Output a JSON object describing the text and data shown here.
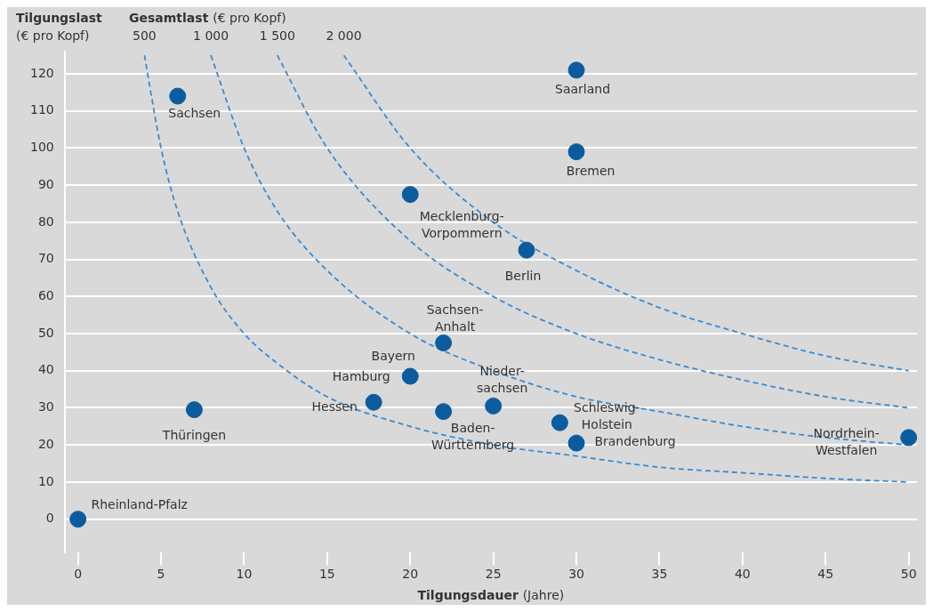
{
  "chart_data": {
    "type": "scatter",
    "ylabel": "Tilgungslast (€ pro Kopf)",
    "xlabel": "Tilgungsdauer (Jahre)",
    "legend_title": "Gesamtlast (€ pro Kopf)",
    "xlim": [
      -0.8,
      50.5
    ],
    "ylim": [
      -9,
      126
    ],
    "xticks": [
      0,
      5,
      10,
      15,
      20,
      25,
      30,
      35,
      40,
      45,
      50
    ],
    "yticks": [
      0,
      10,
      20,
      30,
      40,
      50,
      60,
      70,
      80,
      90,
      100,
      110,
      120
    ],
    "grid": "y",
    "legend": false,
    "series": [
      {
        "type": "line",
        "name": "500",
        "color": "#3a8ad0",
        "line_style": "dashed",
        "x": [
          4,
          5,
          6,
          8,
          10,
          12,
          15,
          20,
          25,
          30,
          35,
          40,
          45,
          50
        ],
        "values": [
          125,
          100,
          83,
          62.5,
          50,
          42,
          33,
          25,
          20,
          17,
          14,
          12.5,
          11,
          10
        ]
      },
      {
        "type": "line",
        "name": "1 000",
        "color": "#3a8ad0",
        "line_style": "dashed",
        "x": [
          8,
          10,
          12,
          15,
          20,
          25,
          30,
          35,
          40,
          45,
          50
        ],
        "values": [
          125,
          100,
          83,
          67,
          50,
          40,
          33,
          29,
          25,
          22,
          20
        ]
      },
      {
        "type": "line",
        "name": "1 500",
        "color": "#3a8ad0",
        "line_style": "dashed",
        "x": [
          12,
          15,
          20,
          25,
          30,
          35,
          40,
          45,
          50
        ],
        "values": [
          125,
          100,
          75,
          60,
          50,
          43,
          37.5,
          33,
          30
        ]
      },
      {
        "type": "line",
        "name": "2 000",
        "color": "#3a8ad0",
        "line_style": "dashed",
        "x": [
          16,
          20,
          25,
          30,
          35,
          40,
          45,
          50
        ],
        "values": [
          125,
          100,
          80,
          67,
          57,
          50,
          44,
          40
        ]
      },
      {
        "marker": "circle",
        "color": "#0a5c9e",
        "x": [
          0,
          6,
          7,
          17.8,
          20,
          20,
          22,
          22,
          25,
          27,
          29,
          30,
          30,
          30,
          50
        ],
        "values": [
          0,
          114,
          29.5,
          31.5,
          38.5,
          87.5,
          29,
          47.5,
          30.5,
          72.5,
          26,
          20.5,
          99,
          121,
          22
        ]
      }
    ],
    "annotations": [
      {
        "text": "Rheinland-Pfalz",
        "x": 0,
        "y": 0
      },
      {
        "text": "Sachsen",
        "x": 6,
        "y": 114
      },
      {
        "text": "Thüringen",
        "x": 7,
        "y": 29.5
      },
      {
        "text": "Hessen",
        "x": 17.8,
        "y": 31.5
      },
      {
        "text": "Bayern",
        "x": 20,
        "y": 38.5
      },
      {
        "text": "Hamburg",
        "x": 20,
        "y": 38.5
      },
      {
        "text": "Mecklenburg-\nVorpommern",
        "x": 20,
        "y": 87.5
      },
      {
        "text": "Baden-\nWürttemberg",
        "x": 22,
        "y": 29
      },
      {
        "text": "Sachsen-\nAnhalt",
        "x": 22,
        "y": 47.5
      },
      {
        "text": "Nieder-\nsachsen",
        "x": 25,
        "y": 30.5
      },
      {
        "text": "Berlin",
        "x": 27,
        "y": 72.5
      },
      {
        "text": "Schleswig-\nHolstein",
        "x": 29,
        "y": 26
      },
      {
        "text": "Brandenburg",
        "x": 30,
        "y": 20.5
      },
      {
        "text": "Bremen",
        "x": 30,
        "y": 99
      },
      {
        "text": "Saarland",
        "x": 30,
        "y": 121
      },
      {
        "text": "Nordrhein-\nWestfalen",
        "x": 50,
        "y": 22
      }
    ]
  }
}
